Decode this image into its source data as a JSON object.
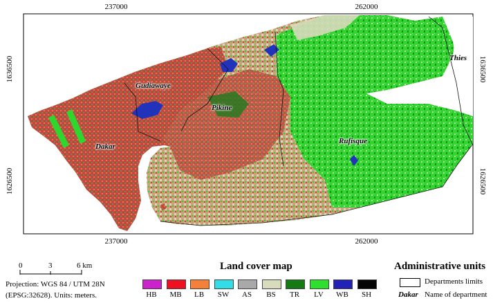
{
  "map": {
    "coords_top": [
      "237000",
      "262000"
    ],
    "coords_bottom": [
      "237000",
      "262000"
    ],
    "coords_left": [
      "1636500",
      "1626500"
    ],
    "coords_right": [
      "1636500",
      "1626500"
    ],
    "places": {
      "gudiawaye": "Gudiawaye",
      "pikine": "Pikine",
      "dakar": "Dakar",
      "rufisque": "Rufisque",
      "thies": "Thies"
    },
    "colors": {
      "ocean": "#ffffff",
      "land_outside": "#ffffff",
      "urban_red": "#c8463c",
      "bare_soil": "#d8d9bf",
      "vegetation": "#2fd82f",
      "trees": "#1e7a1e",
      "water": "#2233bb"
    }
  },
  "scale_bar": {
    "labels": [
      "0",
      "3",
      "6 km"
    ]
  },
  "projection": {
    "line1": "Projection:  WGS 84 / UTM 28N",
    "line2": "(EPSG:32628).    Units: meters."
  },
  "land_cover_legend": {
    "title": "Land cover map",
    "classes": [
      {
        "code": "HB",
        "color": "#cc22cc"
      },
      {
        "code": "MB",
        "color": "#ee1122"
      },
      {
        "code": "LB",
        "color": "#f5803a"
      },
      {
        "code": "SW",
        "color": "#33dde8"
      },
      {
        "code": "AS",
        "color": "#a9a9a9"
      },
      {
        "code": "BS",
        "color": "#d9dcbc"
      },
      {
        "code": "TR",
        "color": "#147a14"
      },
      {
        "code": "LV",
        "color": "#2ee02e"
      },
      {
        "code": "WB",
        "color": "#2222b8"
      },
      {
        "code": "SH",
        "color": "#050505"
      }
    ]
  },
  "admin_legend": {
    "title": "Administrative units",
    "limits_label": "Departments limits",
    "example_name": "Dakar",
    "name_label": "Name of department"
  }
}
